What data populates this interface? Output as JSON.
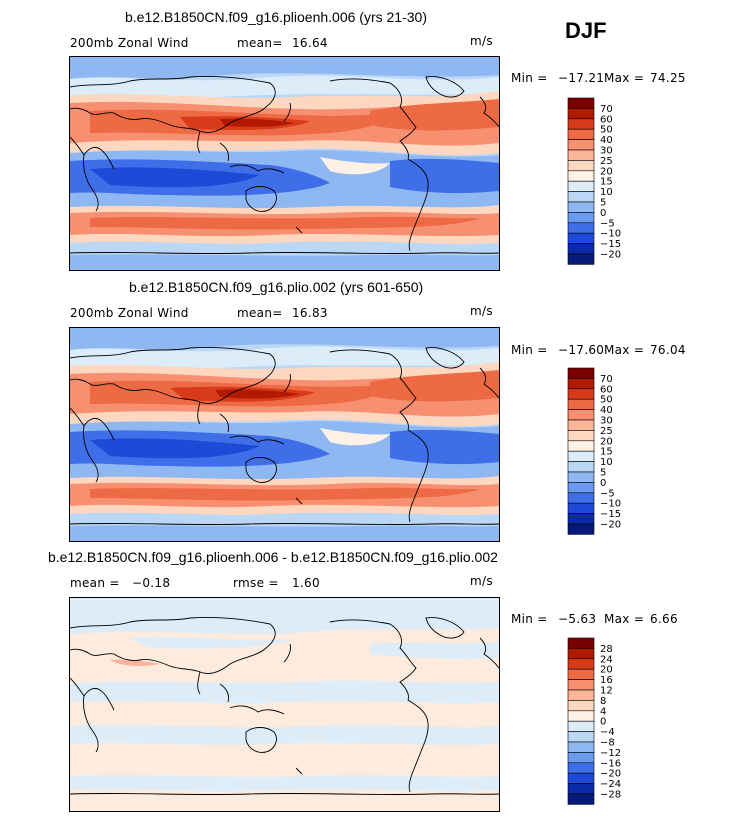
{
  "season": "DJF",
  "units": "m/s",
  "panels": [
    {
      "title": "b.e12.B1850CN.f09_g16.plioenh.006 (yrs 21-30)",
      "left_label": "200mb  Zonal Wind",
      "stat_label": "mean=",
      "stat_value": "16.64",
      "second_label": "",
      "second_value": "",
      "min_label": "Min = ",
      "min_value": "−17.21",
      "max_label": "Max = ",
      "max_value": "74.25"
    },
    {
      "title": "b.e12.B1850CN.f09_g16.plio.002 (yrs 601-650)",
      "left_label": "200mb  Zonal Wind",
      "stat_label": "mean=",
      "stat_value": "16.83",
      "second_label": "",
      "second_value": "",
      "min_label": "Min = ",
      "min_value": "−17.60",
      "max_label": "Max = ",
      "max_value": "76.04"
    },
    {
      "title": "b.e12.B1850CN.f09_g16.plioenh.006 - b.e12.B1850CN.f09_g16.plio.002",
      "left_label": "mean =",
      "stat_label": "",
      "stat_value": "−0.18",
      "second_label": "rmse =",
      "second_value": "1.60",
      "min_label": "Min = ",
      "min_value": "−5.63",
      "max_label": "Max = ",
      "max_value": "6.66"
    }
  ],
  "colorbars": {
    "absolute": {
      "labels": [
        "70",
        "60",
        "50",
        "40",
        "30",
        "25",
        "20",
        "15",
        "10",
        "5",
        "0",
        "−5",
        "−10",
        "−15",
        "−20"
      ],
      "colors": [
        "#7a0000",
        "#b01a00",
        "#d83a1a",
        "#ee6a45",
        "#f79070",
        "#fbb598",
        "#fdd7c0",
        "#fff1e6",
        "#dcecf9",
        "#bad7f6",
        "#8fb8f2",
        "#6a9bee",
        "#3f6fe8",
        "#1f4ad8",
        "#0b2aa8",
        "#061a7a"
      ]
    },
    "difference": {
      "labels": [
        "28",
        "24",
        "20",
        "16",
        "12",
        "8",
        "4",
        "0",
        "−4",
        "−8",
        "−12",
        "−16",
        "−20",
        "−24",
        "−28"
      ],
      "colors": [
        "#7a0000",
        "#b01a00",
        "#d83a1a",
        "#ee6a45",
        "#f79070",
        "#fbb598",
        "#fdd7c0",
        "#fff1e6",
        "#dcecf9",
        "#bad7f6",
        "#8fb8f2",
        "#6a9bee",
        "#3f6fe8",
        "#1f4ad8",
        "#0b2aa8",
        "#061a7a"
      ]
    }
  },
  "chart_data": [
    {
      "type": "heatmap",
      "title": "b.e12.B1850CN.f09_g16.plioenh.006 (yrs 21-30)",
      "variable": "200mb Zonal Wind",
      "units": "m/s",
      "mean": 16.64,
      "min": -17.21,
      "max": 74.25,
      "contour_levels": [
        -20,
        -15,
        -10,
        -5,
        0,
        5,
        10,
        15,
        20,
        25,
        30,
        40,
        50,
        60,
        70
      ],
      "lon_range": [
        0,
        360
      ],
      "lat_range": [
        -90,
        90
      ],
      "profile_lat": [
        90,
        75,
        60,
        45,
        30,
        15,
        0,
        -15,
        -30,
        -45,
        -60,
        -75,
        -90
      ],
      "profile_u": [
        3,
        8,
        18,
        30,
        45,
        8,
        -10,
        10,
        25,
        20,
        8,
        0,
        -4
      ]
    },
    {
      "type": "heatmap",
      "title": "b.e12.B1850CN.f09_g16.plio.002 (yrs 601-650)",
      "variable": "200mb Zonal Wind",
      "units": "m/s",
      "mean": 16.83,
      "min": -17.6,
      "max": 76.04,
      "contour_levels": [
        -20,
        -15,
        -10,
        -5,
        0,
        5,
        10,
        15,
        20,
        25,
        30,
        40,
        50,
        60,
        70
      ],
      "lon_range": [
        0,
        360
      ],
      "lat_range": [
        -90,
        90
      ],
      "profile_lat": [
        90,
        75,
        60,
        45,
        30,
        15,
        0,
        -15,
        -30,
        -45,
        -60,
        -75,
        -90
      ],
      "profile_u": [
        3,
        8,
        18,
        30,
        46,
        8,
        -10,
        10,
        26,
        20,
        8,
        0,
        -4
      ]
    },
    {
      "type": "heatmap",
      "title": "b.e12.B1850CN.f09_g16.plioenh.006 - b.e12.B1850CN.f09_g16.plio.002",
      "variable": "200mb Zonal Wind difference",
      "units": "m/s",
      "mean": -0.18,
      "rmse": 1.6,
      "min": -5.63,
      "max": 6.66,
      "contour_levels": [
        -28,
        -24,
        -20,
        -16,
        -12,
        -8,
        -4,
        0,
        4,
        8,
        12,
        16,
        20,
        24,
        28
      ],
      "lon_range": [
        0,
        360
      ],
      "lat_range": [
        -90,
        90
      ]
    }
  ]
}
